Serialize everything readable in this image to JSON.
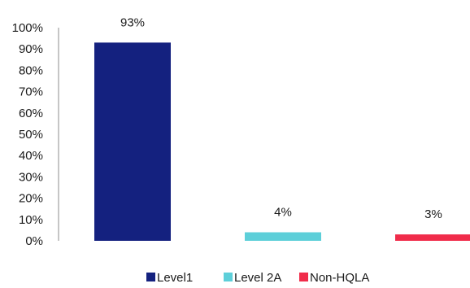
{
  "chart_data": {
    "type": "bar",
    "categories": [
      "Level1",
      "Level 2A",
      "Non-HQLA"
    ],
    "values": [
      93,
      4,
      3
    ],
    "value_labels": [
      "93%",
      "4%",
      "3%"
    ],
    "colors": [
      "#14217F",
      "#5DCFD9",
      "#F02C4A"
    ],
    "title": "",
    "xlabel": "",
    "ylabel": "",
    "ylim": [
      0,
      100
    ],
    "y_ticks": [
      "0%",
      "10%",
      "20%",
      "30%",
      "40%",
      "50%",
      "60%",
      "70%",
      "80%",
      "90%",
      "100%"
    ],
    "grid": false,
    "legend": {
      "position": "bottom",
      "entries": [
        "Level1",
        "Level 2A",
        "Non-HQLA"
      ]
    }
  }
}
